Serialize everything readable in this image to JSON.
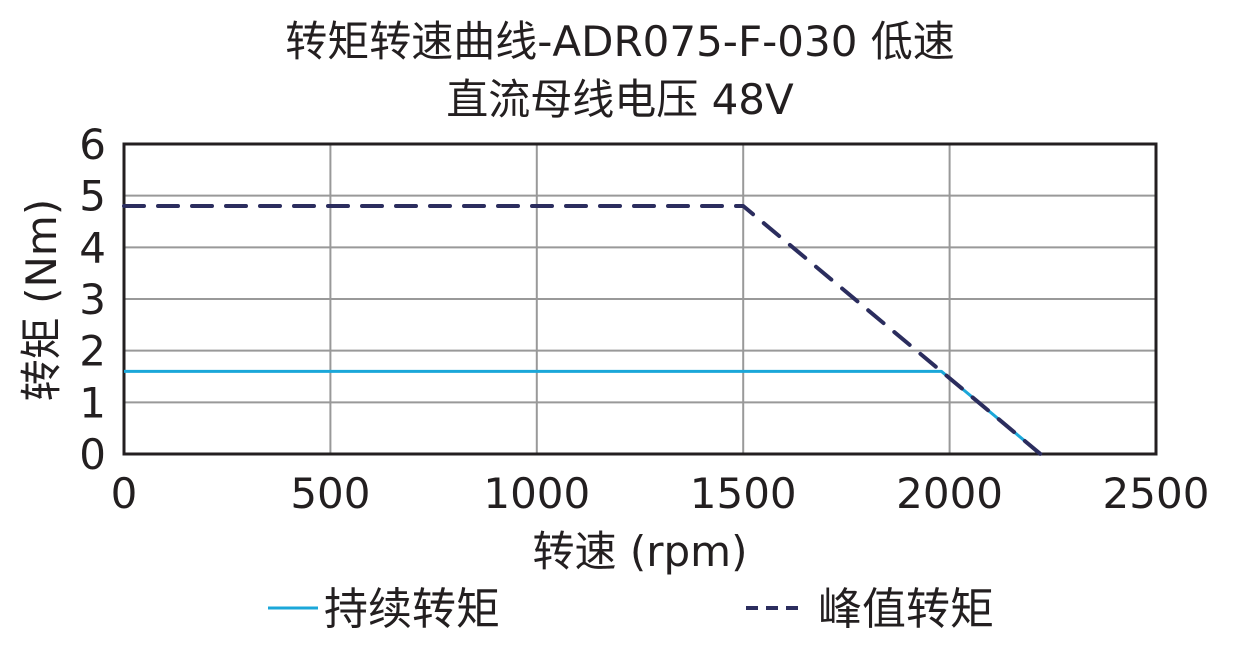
{
  "chart_data": {
    "type": "line",
    "title": "转矩转速曲线-ADR075-F-030 低速",
    "subtitle": "直流母线电压 48V",
    "xlabel": "转速 (rpm)",
    "ylabel": "转矩 (Nm)",
    "xlim": [
      0,
      2500
    ],
    "ylim": [
      0,
      6
    ],
    "xticks": [
      0,
      500,
      1000,
      1500,
      2000,
      2500
    ],
    "yticks": [
      0,
      1,
      2,
      3,
      4,
      5,
      6
    ],
    "grid": true,
    "legend_position": "bottom",
    "series": [
      {
        "name": "持续转矩",
        "style": "solid",
        "color": "#1ba7d9",
        "x": [
          0,
          1980,
          2220
        ],
        "y": [
          1.6,
          1.6,
          0
        ]
      },
      {
        "name": "峰值转矩",
        "style": "dashed",
        "color": "#2b2d5e",
        "x": [
          0,
          1500,
          2220
        ],
        "y": [
          4.8,
          4.8,
          0
        ]
      }
    ]
  },
  "legend": {
    "continuous": "持续转矩",
    "peak": "峰值转矩"
  }
}
